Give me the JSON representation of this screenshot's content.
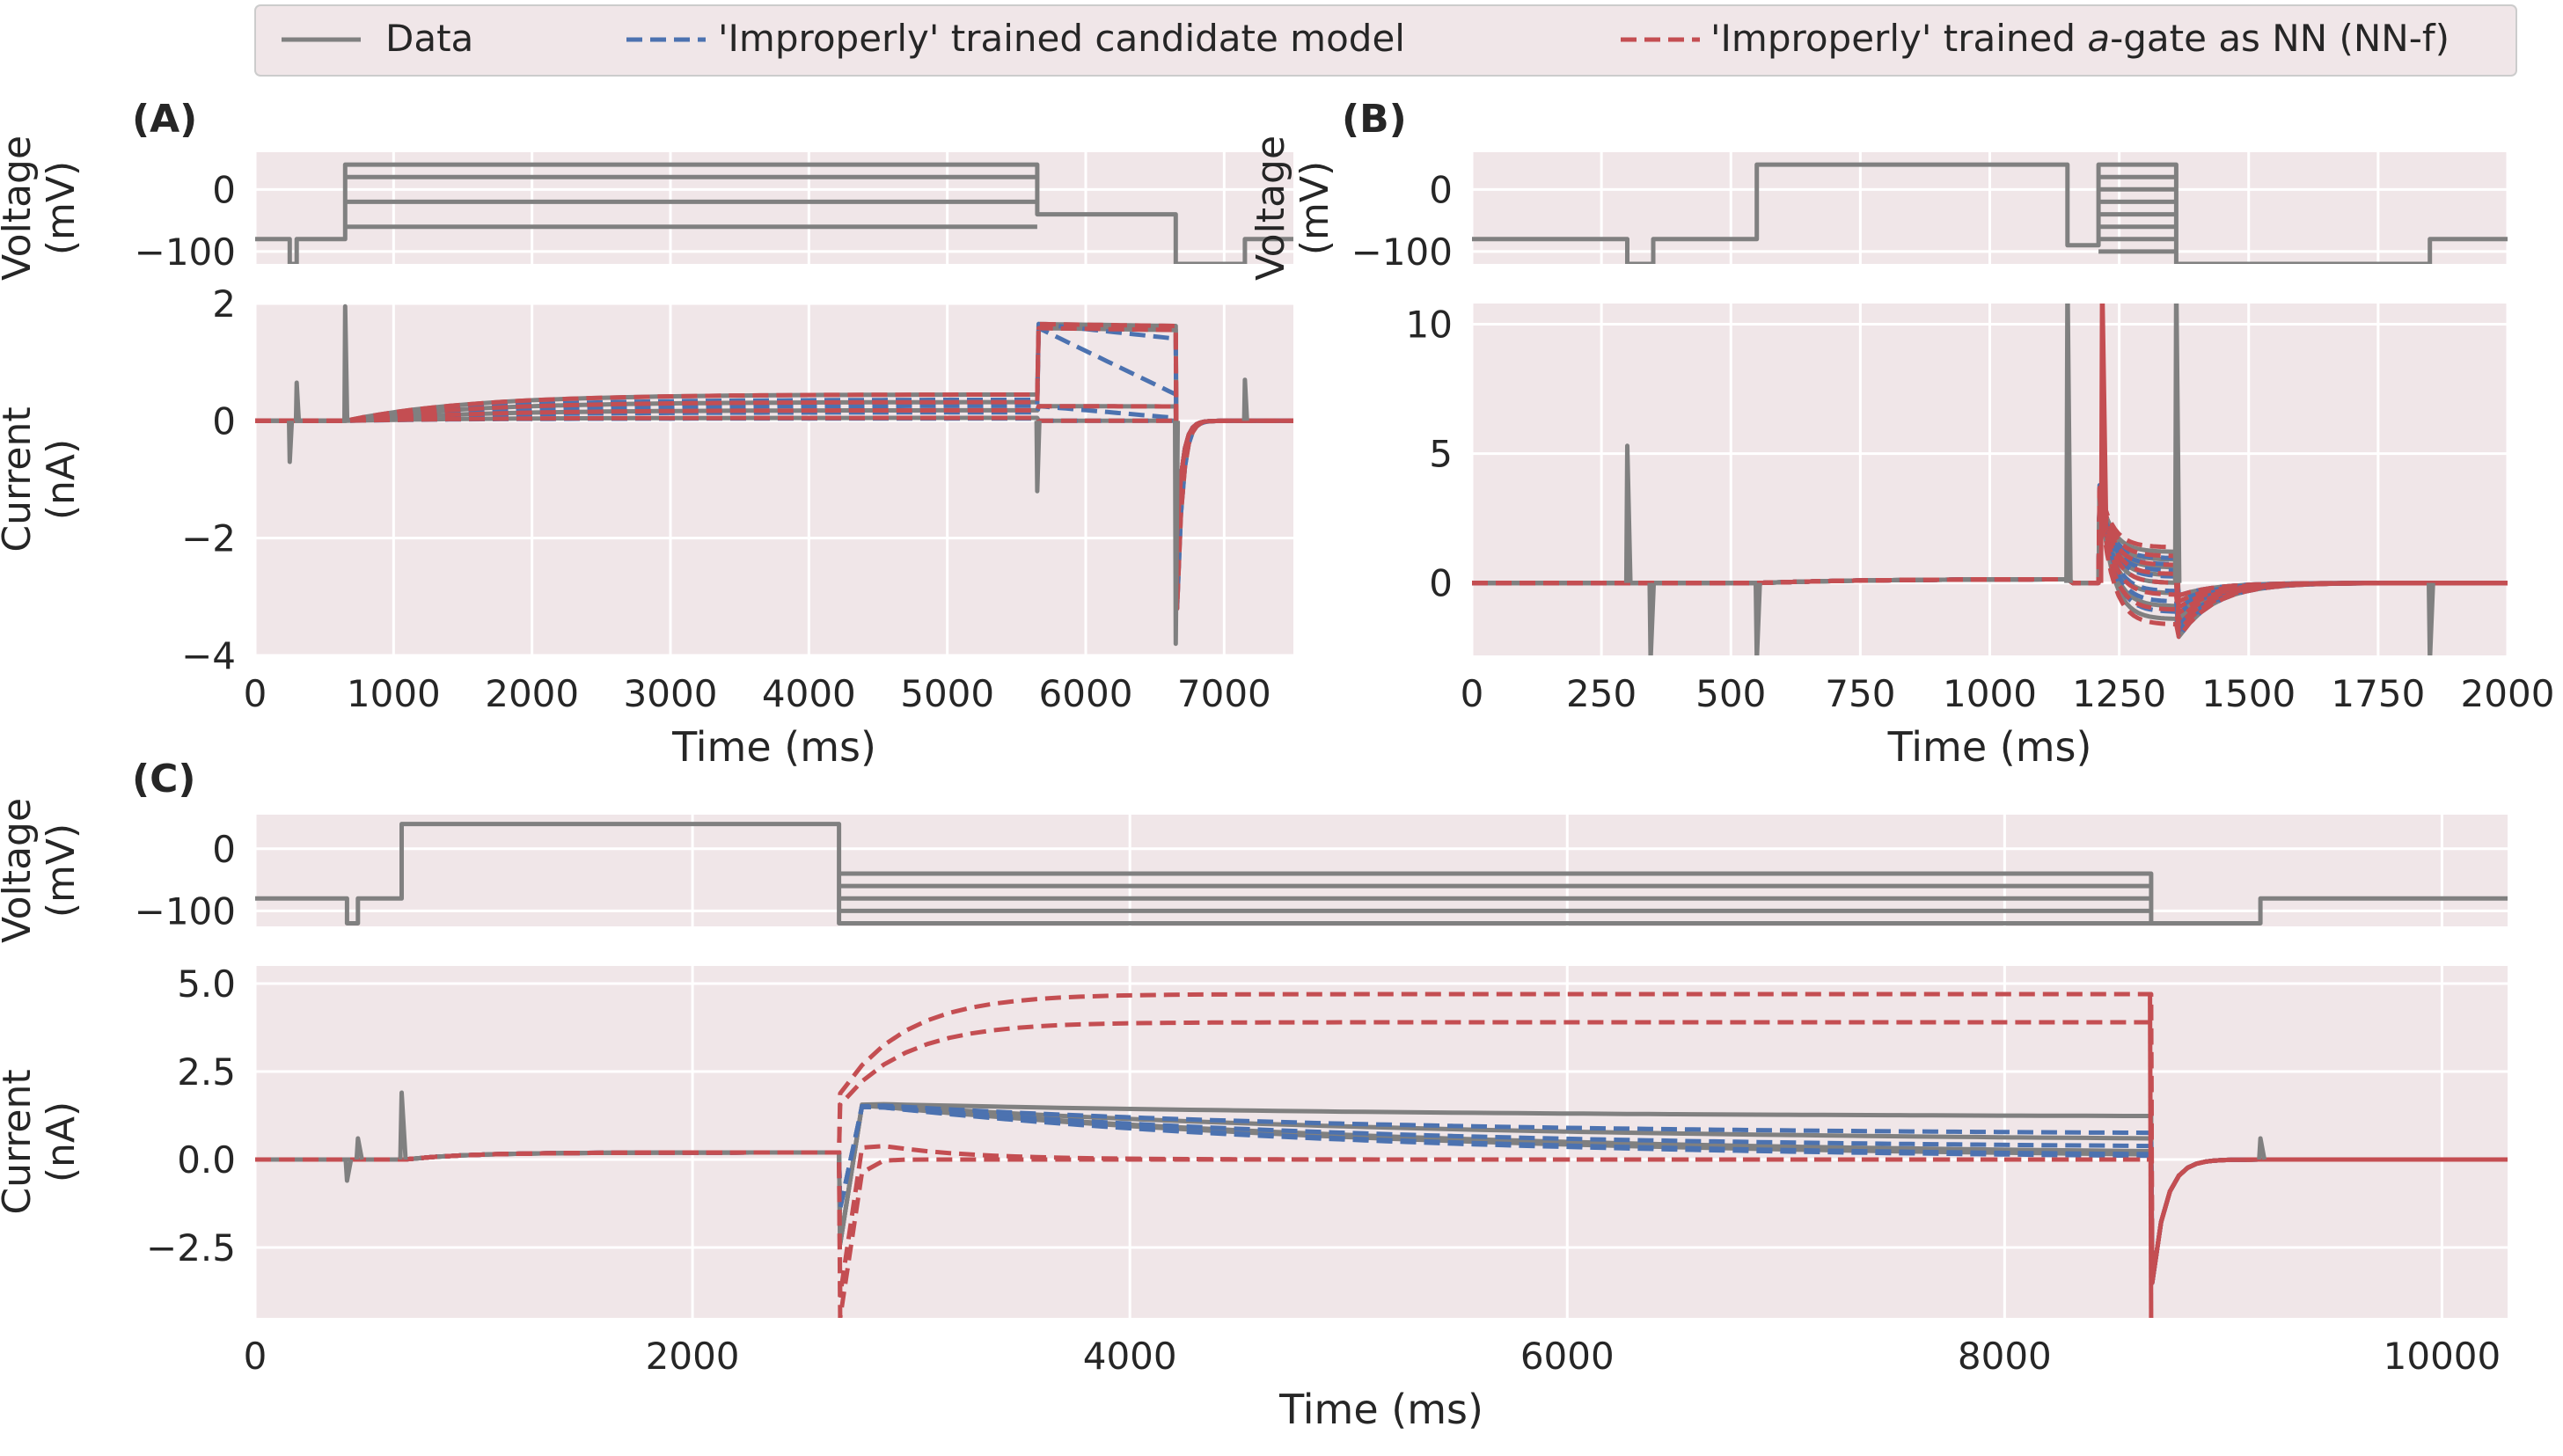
{
  "colors": {
    "data": "#808080",
    "candidate": "#4c72b0",
    "nn": "#c44e52",
    "panel_bg": "#f0e6e8",
    "grid": "#ffffff",
    "text": "#262626"
  },
  "legend": {
    "placement": "top-center",
    "entries": [
      {
        "label": "Data",
        "color": "#808080",
        "style": "solid"
      },
      {
        "label": "'Improperly' trained candidate model",
        "color": "#4c72b0",
        "style": "dashed"
      },
      {
        "label_pre": "'Improperly' trained ",
        "label_italic": "a",
        "label_post": "-gate as NN (NN-f)",
        "color": "#c44e52",
        "style": "dashed"
      }
    ]
  },
  "chart_data": [
    {
      "panel": "(A)",
      "type": "line",
      "voltage": {
        "ylabel": [
          "Voltage",
          "(mV)"
        ],
        "ylim": [
          -120,
          60
        ],
        "yticks": [
          0,
          -100
        ],
        "ytick_labels": [
          "0",
          "−100"
        ],
        "traces": [
          [
            [
              0,
              -80
            ],
            [
              250,
              -80
            ],
            [
              250,
              -120
            ],
            [
              300,
              -120
            ],
            [
              300,
              -80
            ],
            [
              650,
              -80
            ],
            [
              650,
              40
            ],
            [
              5650,
              40
            ],
            [
              5650,
              -40
            ],
            [
              6650,
              -40
            ],
            [
              6650,
              -120
            ],
            [
              7150,
              -120
            ],
            [
              7150,
              -80
            ],
            [
              7500,
              -80
            ]
          ],
          [
            [
              650,
              20
            ],
            [
              5650,
              20
            ]
          ],
          [
            [
              650,
              -20
            ],
            [
              5650,
              -20
            ]
          ],
          [
            [
              650,
              -60
            ],
            [
              5650,
              -60
            ]
          ]
        ]
      },
      "current": {
        "ylabel": [
          "Current",
          "(nA)"
        ],
        "ylim": [
          -4,
          2
        ],
        "yticks": [
          2,
          0,
          -2,
          -4
        ],
        "ytick_labels": [
          "2",
          "0",
          "−2",
          "−4"
        ],
        "xlim": [
          0,
          7500
        ],
        "xticks": [
          0,
          1000,
          2000,
          3000,
          4000,
          5000,
          6000,
          7000
        ],
        "xtick_labels": [
          "0",
          "1000",
          "2000",
          "3000",
          "4000",
          "5000",
          "6000",
          "7000"
        ],
        "xlabel": "Time (ms)",
        "sustained": [
          0.45,
          0.32,
          0.18,
          0.05
        ],
        "tail": [
          1.65,
          1.58,
          0.25,
          0.0
        ],
        "candidate_tail_end": [
          1.4,
          0.45,
          0.05,
          0.0
        ],
        "tail_spike_min": -3.8,
        "capacitive_spikes": [
          [
            250,
            -0.7
          ],
          [
            300,
            0.65
          ],
          [
            650,
            1.95
          ],
          [
            5650,
            -1.2
          ],
          [
            6650,
            -3.8
          ],
          [
            7150,
            0.7
          ]
        ]
      }
    },
    {
      "panel": "(B)",
      "type": "line",
      "voltage": {
        "ylabel": [
          "Voltage",
          "(mV)"
        ],
        "ylim": [
          -120,
          60
        ],
        "yticks": [
          0,
          -100
        ],
        "ytick_labels": [
          "0",
          "−100"
        ],
        "traces": [
          [
            [
              0,
              -80
            ],
            [
              300,
              -80
            ],
            [
              300,
              -120
            ],
            [
              350,
              -120
            ],
            [
              350,
              -80
            ],
            [
              550,
              -80
            ],
            [
              550,
              40
            ],
            [
              1150,
              40
            ],
            [
              1150,
              -90
            ],
            [
              1210,
              -90
            ],
            [
              1210,
              40
            ],
            [
              1360,
              40
            ],
            [
              1360,
              -120
            ],
            [
              1850,
              -120
            ],
            [
              1850,
              -80
            ],
            [
              2000,
              -80
            ]
          ],
          [
            [
              1210,
              20
            ],
            [
              1360,
              20
            ]
          ],
          [
            [
              1210,
              0
            ],
            [
              1360,
              0
            ]
          ],
          [
            [
              1210,
              -20
            ],
            [
              1360,
              -20
            ]
          ],
          [
            [
              1210,
              -40
            ],
            [
              1360,
              -40
            ]
          ],
          [
            [
              1210,
              -60
            ],
            [
              1360,
              -60
            ]
          ],
          [
            [
              1210,
              -80
            ],
            [
              1360,
              -80
            ]
          ],
          [
            [
              1210,
              -100
            ],
            [
              1360,
              -100
            ]
          ]
        ]
      },
      "current": {
        "ylabel": [
          "",
          ""
        ],
        "ylim": [
          -2.8,
          10.8
        ],
        "yticks": [
          10,
          5,
          0
        ],
        "ytick_labels": [
          "10",
          "5",
          "0"
        ],
        "xlim": [
          0,
          2000
        ],
        "xticks": [
          0,
          250,
          500,
          750,
          1000,
          1250,
          1500,
          1750,
          2000
        ],
        "xtick_labels": [
          "0",
          "250",
          "500",
          "750",
          "1000",
          "1250",
          "1500",
          "1750",
          "2000"
        ],
        "xlabel": "Time (ms)"
      }
    },
    {
      "panel": "(C)",
      "type": "line",
      "voltage": {
        "ylabel": [
          "Voltage",
          "(mV)"
        ],
        "ylim": [
          -125,
          55
        ],
        "yticks": [
          0,
          -100
        ],
        "ytick_labels": [
          "0",
          "−100"
        ],
        "traces": [
          [
            [
              0,
              -80
            ],
            [
              420,
              -80
            ],
            [
              420,
              -120
            ],
            [
              470,
              -120
            ],
            [
              470,
              -80
            ],
            [
              670,
              -80
            ],
            [
              670,
              40
            ],
            [
              2670,
              40
            ],
            [
              2670,
              -120
            ],
            [
              8670,
              -120
            ],
            [
              9170,
              -120
            ],
            [
              9170,
              -80
            ],
            [
              10300,
              -80
            ]
          ],
          [
            [
              2670,
              -100
            ],
            [
              8670,
              -100
            ]
          ],
          [
            [
              2670,
              -80
            ],
            [
              8670,
              -80
            ]
          ],
          [
            [
              2670,
              -60
            ],
            [
              8670,
              -60
            ]
          ],
          [
            [
              2670,
              -40
            ],
            [
              8670,
              -40
            ],
            [
              8670,
              -120
            ]
          ]
        ]
      },
      "current": {
        "ylabel": [
          "Current",
          "(nA)"
        ],
        "ylim": [
          -4.5,
          5.5
        ],
        "yticks": [
          5.0,
          2.5,
          0.0,
          -2.5
        ],
        "ytick_labels": [
          "5.0",
          "2.5",
          "0.0",
          "−2.5"
        ],
        "xlim": [
          0,
          10300
        ],
        "xticks": [
          0,
          2000,
          4000,
          6000,
          8000,
          10000
        ],
        "xtick_labels": [
          "0",
          "2000",
          "4000",
          "6000",
          "8000",
          "10000"
        ],
        "xlabel": "Time (ms)",
        "nn_sustained": [
          4.7,
          3.9
        ],
        "data_sustained": [
          1.2,
          0.5,
          0.1,
          0.0
        ],
        "candidate_sustained": [
          0.7,
          0.3,
          0.05,
          0.0
        ]
      }
    }
  ]
}
